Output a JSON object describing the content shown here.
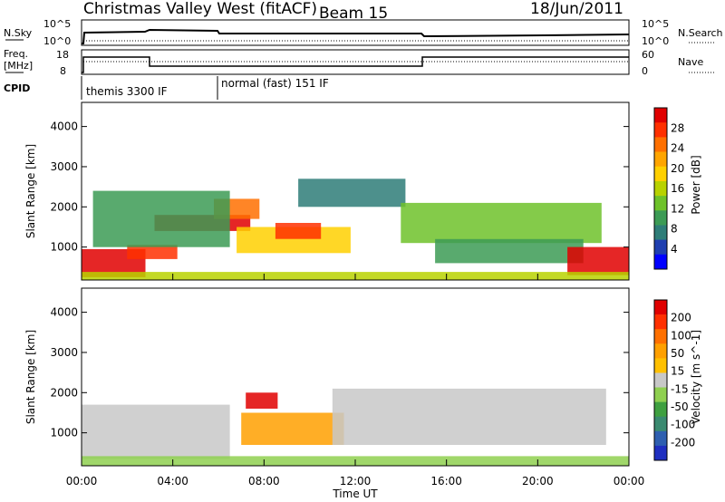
{
  "header": {
    "title": "Christmas Valley West (fitACF)",
    "beam": "Beam 15",
    "date": "18/Jun/2011"
  },
  "top_panels": {
    "nsky_label": "N.Sky",
    "nsky_ticks": [
      "10^5",
      "10^0"
    ],
    "nsearch_label": "N.Search",
    "nsearch_ticks": [
      "10^5",
      "10^0"
    ],
    "freq_label": "Freq.",
    "freq_unit": "[MHz]",
    "freq_ticks": [
      "18",
      "8"
    ],
    "nave_label": "Nave",
    "nave_ticks": [
      "60",
      "0"
    ],
    "cpid_label": "CPID",
    "cpid_segments": [
      {
        "label": "themis 3300 IF",
        "start_hour": 0,
        "end_hour": 6
      },
      {
        "label": "normal (fast) 151 IF",
        "start_hour": 6,
        "end_hour": 24
      }
    ]
  },
  "chart_data": [
    {
      "type": "heatmap",
      "name": "power",
      "ylabel": "Slant Range [km]",
      "yticks": [
        1000,
        2000,
        3000,
        4000
      ],
      "ylim": [
        180,
        4600
      ],
      "xlim": [
        0,
        24
      ],
      "colorbar_label": "Power [dB]",
      "colorbar_ticks": [
        "28",
        "24",
        "20",
        "16",
        "12",
        "8",
        "4"
      ],
      "colorbar_colors": [
        "#0000ff",
        "#1f3fb0",
        "#2e7d78",
        "#3c9b55",
        "#6ec22a",
        "#b8d200",
        "#ffd000",
        "#ffa500",
        "#ff7000",
        "#ff3000",
        "#e00000"
      ],
      "regions": [
        {
          "t0": 0.0,
          "t1": 2.8,
          "r0": 250,
          "r1": 950,
          "level": 10
        },
        {
          "t0": 2.0,
          "t1": 4.2,
          "r0": 700,
          "r1": 1050,
          "level": 9
        },
        {
          "t0": 3.2,
          "t1": 7.4,
          "r0": 1400,
          "r1": 1800,
          "level": 10
        },
        {
          "t0": 5.8,
          "t1": 7.8,
          "r0": 1700,
          "r1": 2200,
          "level": 8
        },
        {
          "t0": 6.8,
          "t1": 11.8,
          "r0": 850,
          "r1": 1500,
          "level": 6
        },
        {
          "t0": 8.5,
          "t1": 10.5,
          "r0": 1200,
          "r1": 1600,
          "level": 9
        },
        {
          "t0": 0.5,
          "t1": 6.5,
          "r0": 1000,
          "r1": 2400,
          "level": 3
        },
        {
          "t0": 9.5,
          "t1": 14.2,
          "r0": 2000,
          "r1": 2700,
          "level": 2
        },
        {
          "t0": 14.0,
          "t1": 22.8,
          "r0": 1100,
          "r1": 2100,
          "level": 4
        },
        {
          "t0": 15.5,
          "t1": 22.0,
          "r0": 600,
          "r1": 1200,
          "level": 3
        },
        {
          "t0": 21.3,
          "t1": 24.0,
          "r0": 300,
          "r1": 1000,
          "level": 10
        },
        {
          "t0": 0.0,
          "t1": 24.0,
          "r0": 180,
          "r1": 380,
          "level": 5
        }
      ]
    },
    {
      "type": "heatmap",
      "name": "velocity",
      "ylabel": "Slant Range [km]",
      "yticks": [
        1000,
        2000,
        3000,
        4000
      ],
      "ylim": [
        180,
        4600
      ],
      "xlim": [
        0,
        24
      ],
      "xlabel": "Time UT",
      "xticks": [
        "00:00",
        "04:00",
        "08:00",
        "12:00",
        "16:00",
        "20:00",
        "00:00"
      ],
      "colorbar_label": "Velocity [m s^-1]",
      "colorbar_ticks": [
        "200",
        "100",
        "50",
        "15",
        "-15",
        "-50",
        "-100",
        "-200"
      ],
      "colorbar_colors": [
        "#1f2fc0",
        "#2e5fb0",
        "#3a8a70",
        "#3fa040",
        "#8fd050",
        "#c8c8c8",
        "#ffc000",
        "#ffa000",
        "#ff7000",
        "#ff3000",
        "#e00000"
      ],
      "regions": [
        {
          "t0": 0.0,
          "t1": 6.5,
          "r0": 350,
          "r1": 1700,
          "level": 5
        },
        {
          "t0": 7.0,
          "t1": 11.5,
          "r0": 700,
          "r1": 1500,
          "level": 7
        },
        {
          "t0": 7.2,
          "t1": 8.6,
          "r0": 1600,
          "r1": 2000,
          "level": 10
        },
        {
          "t0": 11.0,
          "t1": 23.0,
          "r0": 700,
          "r1": 2100,
          "level": 5
        },
        {
          "t0": 0.0,
          "t1": 24.0,
          "r0": 180,
          "r1": 420,
          "level": 4
        }
      ]
    }
  ]
}
